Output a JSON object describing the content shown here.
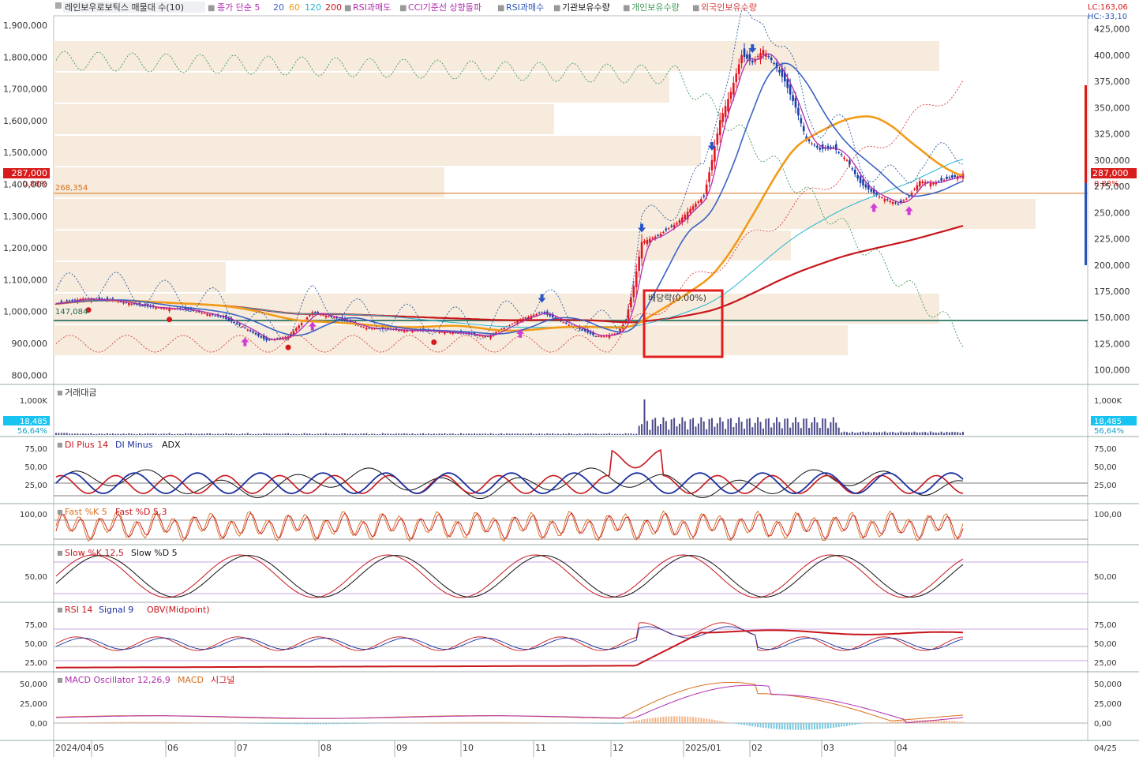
{
  "colors": {
    "zone": "#f6ebdc",
    "avg_line": "#d8701c",
    "hline": "#1a6b5a",
    "up": "#e2141f",
    "down": "#1a3fa8",
    "ma5": "#b02cb0",
    "ma20": "#3b62c4",
    "ma60": "#f29b18",
    "ma120": "#25b4d0",
    "ma200": "#c8151b",
    "inst": "#2f5a9e",
    "indiv": "#3f9a5c",
    "foreign": "#d83d3d",
    "highlight": "#e41c1c",
    "price_tag": "#d81b1b",
    "vol_tag": "#17c3f0"
  },
  "legend": {
    "main_title": "레인보우로보틱스 매물대 수(10)",
    "ma_label": "종가 단순 5",
    "ma_periods": [
      "20",
      "60",
      "120",
      "200"
    ],
    "rsi_sell": "RSI과매도",
    "cci": "CCI기준선 상향돌파",
    "rsi_buy": "RSI과매수",
    "inst": "기관보유수량",
    "indiv": "개인보유수량",
    "foreign": "외국인보유수량"
  },
  "info": {
    "lc": "LC:163,06",
    "hc": "HC:-33,10"
  },
  "price_tag": {
    "value": "287,000",
    "pct": "0.88%"
  },
  "ref_lines": {
    "avg_value": "268,354",
    "low_value": "147,084"
  },
  "annotation": {
    "text": "배당락(0.00%)"
  },
  "volume": {
    "title": "거래대금",
    "axis": "1,000K",
    "value": "18,485",
    "pct": "56,64%"
  },
  "dmi": {
    "plus": "DI Plus 14",
    "minus": "DI Minus",
    "adx": "ADX",
    "ticks": [
      "75,00",
      "50,00",
      "25,00"
    ]
  },
  "fast": {
    "k": "Fast %K 5",
    "d": "Fast %D 5,3",
    "ticks": [
      "100,00"
    ]
  },
  "slow": {
    "k": "Slow %K 12,5",
    "d": "Slow %D 5",
    "ticks": [
      "50,00"
    ]
  },
  "rsi": {
    "rsi": "RSI 14",
    "signal": "Signal 9",
    "obv": "OBV(Midpoint)",
    "ticks": [
      "75,00",
      "50,00",
      "25,00"
    ]
  },
  "macd": {
    "osc": "MACD Oscillator 12,26,9",
    "macd": "MACD",
    "signal": "시그널",
    "ticks": [
      "50,000",
      "25,000",
      "0,00"
    ]
  },
  "chart_data": {
    "type": "candlestick",
    "title": "레인보우로보틱스",
    "x_labels": [
      "2024/04",
      "05",
      "06",
      "07",
      "08",
      "09",
      "10",
      "11",
      "12",
      "2025/01",
      "02",
      "03",
      "04"
    ],
    "x_end_label": "04/25",
    "price_axis_left": [
      1900000,
      1800000,
      1700000,
      1600000,
      1500000,
      1400000,
      1300000,
      1200000,
      1100000,
      1000000,
      900000,
      800000
    ],
    "price_axis_right": [
      425000,
      400000,
      375000,
      350000,
      325000,
      300000,
      275000,
      250000,
      225000,
      200000,
      175000,
      150000,
      125000,
      100000
    ],
    "price_ylim": [
      93000,
      430000
    ],
    "close_anchors": [
      [
        0,
        163000
      ],
      [
        10,
        168000
      ],
      [
        22,
        166000
      ],
      [
        35,
        160000
      ],
      [
        50,
        157000
      ],
      [
        62,
        150000
      ],
      [
        70,
        140000
      ],
      [
        78,
        128000
      ],
      [
        86,
        132000
      ],
      [
        95,
        155000
      ],
      [
        103,
        150000
      ],
      [
        115,
        140000
      ],
      [
        128,
        138000
      ],
      [
        140,
        137000
      ],
      [
        150,
        135000
      ],
      [
        160,
        132000
      ],
      [
        172,
        148000
      ],
      [
        180,
        155000
      ],
      [
        190,
        143000
      ],
      [
        196,
        137000
      ],
      [
        200,
        132000
      ],
      [
        204,
        133000
      ],
      [
        208,
        135000
      ],
      [
        211,
        147000
      ],
      [
        214,
        180000
      ],
      [
        217,
        222000
      ],
      [
        223,
        228000
      ],
      [
        230,
        240000
      ],
      [
        236,
        256000
      ],
      [
        240,
        265000
      ],
      [
        243,
        300000
      ],
      [
        246,
        338000
      ],
      [
        250,
        365000
      ],
      [
        254,
        400000
      ],
      [
        258,
        393000
      ],
      [
        262,
        405000
      ],
      [
        266,
        392000
      ],
      [
        270,
        375000
      ],
      [
        274,
        350000
      ],
      [
        278,
        320000
      ],
      [
        283,
        310000
      ],
      [
        288,
        312000
      ],
      [
        293,
        300000
      ],
      [
        298,
        278000
      ],
      [
        303,
        268000
      ],
      [
        308,
        262000
      ],
      [
        312,
        258000
      ],
      [
        316,
        265000
      ],
      [
        320,
        280000
      ],
      [
        325,
        278000
      ],
      [
        330,
        282000
      ],
      [
        336,
        286000
      ]
    ],
    "final_close": 287000,
    "sessions": 337,
    "indicators": [
      "MA5",
      "MA20",
      "MA60",
      "MA120",
      "MA200",
      "거래대금",
      "DMI",
      "Fast Stochastic",
      "Slow Stochastic",
      "RSI",
      "OBV",
      "MACD"
    ]
  }
}
